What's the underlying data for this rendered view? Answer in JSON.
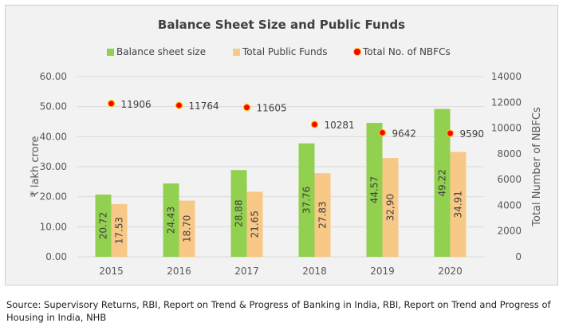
{
  "chart_data": {
    "type": "bar",
    "title": "Balance Sheet Size and Public Funds",
    "categories": [
      "2015",
      "2016",
      "2017",
      "2018",
      "2019",
      "2020"
    ],
    "series": [
      {
        "name": "Balance sheet size",
        "kind": "bar",
        "axis": "left",
        "color": "#92d050",
        "values": [
          20.72,
          24.43,
          28.88,
          37.76,
          44.57,
          49.22
        ],
        "labels": [
          "20.72",
          "24.43",
          "28.88",
          "37.76",
          "44.57",
          "49.22"
        ]
      },
      {
        "name": "Total Public Funds",
        "kind": "bar",
        "axis": "left",
        "color": "#f8c886",
        "values": [
          17.53,
          18.7,
          21.65,
          27.83,
          32.9,
          34.91
        ],
        "labels": [
          "17.53",
          "18.70",
          "21.65",
          "27.83",
          "32,90",
          "34.91"
        ]
      },
      {
        "name": "Total No. of NBFCs",
        "kind": "scatter",
        "axis": "right",
        "color": "#ff0000",
        "values": [
          11906,
          11764,
          11605,
          10281,
          9642,
          9590
        ],
        "labels": [
          "11906",
          "11764",
          "11605",
          "10281",
          "9642",
          "9590"
        ]
      }
    ],
    "ylabel": "₹ lakh crore",
    "y2label": "Total Number of NBFCs",
    "ylim": [
      0,
      60
    ],
    "y2lim": [
      0,
      14000
    ],
    "yticks": [
      "0.00",
      "10.00",
      "20.00",
      "30.00",
      "40.00",
      "50.00",
      "60.00"
    ],
    "y2ticks": [
      "0",
      "2000",
      "4000",
      "6000",
      "8000",
      "10000",
      "12000",
      "14000"
    ],
    "grid": true,
    "legend": "top"
  },
  "source": "Source: Supervisory Returns, RBI, Report on Trend & Progress of Banking in India, RBI, Report on Trend and Progress of Housing in India, NHB"
}
